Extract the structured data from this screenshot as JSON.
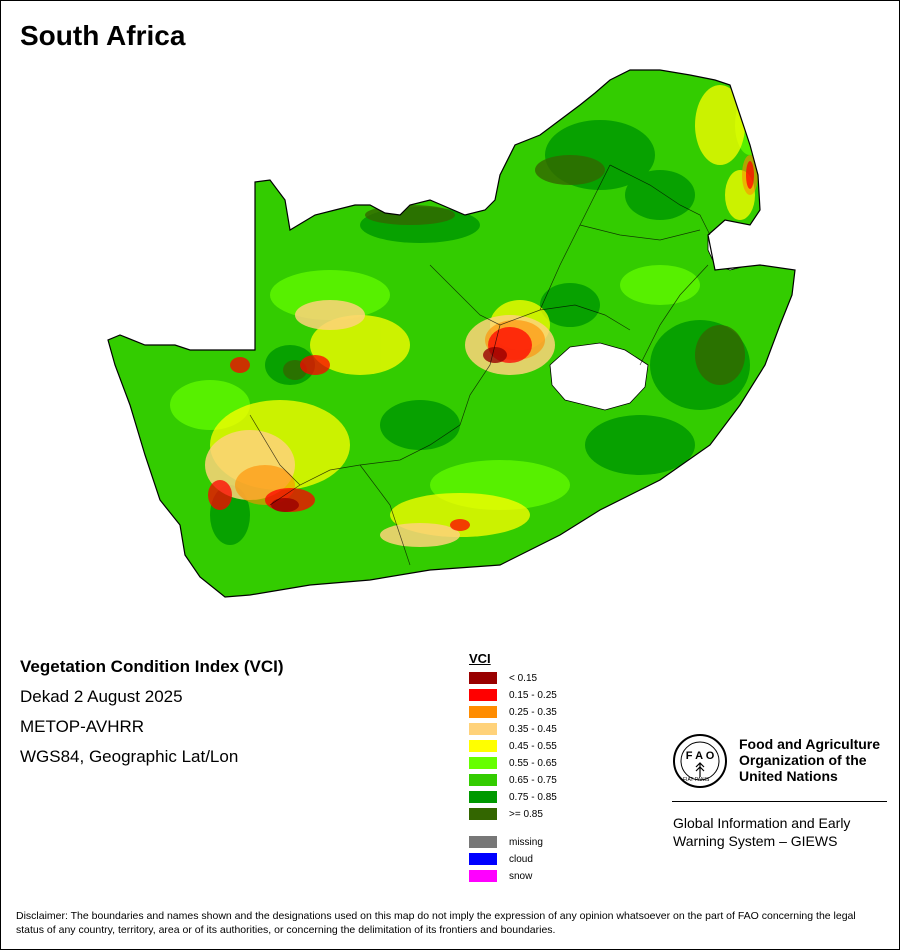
{
  "map": {
    "title": "South Africa",
    "info_lines": [
      "Vegetation Condition Index (VCI)",
      "Dekad 2 August 2025",
      "METOP-AVHRR",
      "WGS84, Geographic Lat/Lon"
    ]
  },
  "legend": {
    "title": "VCI",
    "classes": [
      {
        "label": "< 0.15",
        "color": "#990000"
      },
      {
        "label": "0.15 - 0.25",
        "color": "#ff0000"
      },
      {
        "label": "0.25 - 0.35",
        "color": "#ff8c00"
      },
      {
        "label": "0.35 - 0.45",
        "color": "#ffd27a"
      },
      {
        "label": "0.45 - 0.55",
        "color": "#ffff00"
      },
      {
        "label": "0.55 - 0.65",
        "color": "#66ff00"
      },
      {
        "label": "0.65 - 0.75",
        "color": "#33cc00"
      },
      {
        "label": "0.75 - 0.85",
        "color": "#009900"
      },
      {
        "label": ">= 0.85",
        "color": "#336600"
      }
    ],
    "special": [
      {
        "label": "missing",
        "color": "#777777"
      },
      {
        "label": "cloud",
        "color": "#0000ff"
      },
      {
        "label": "snow",
        "color": "#ff00ff"
      }
    ]
  },
  "organization": {
    "name_line1": "Food and Agriculture",
    "name_line2": "Organization of the",
    "name_line3": "United Nations",
    "logo_text": "FIAT PANIS",
    "system_line1": "Global Information and Early",
    "system_line2": "Warning System – GIEWS"
  },
  "disclaimer": "Disclaimer: The boundaries and names shown and the designations used on this map do not imply the expression of any opinion whatsoever on the part of FAO concerning the legal status of any country, territory, area or of its authorities, or concerning the delimitation of its frontiers and boundaries."
}
